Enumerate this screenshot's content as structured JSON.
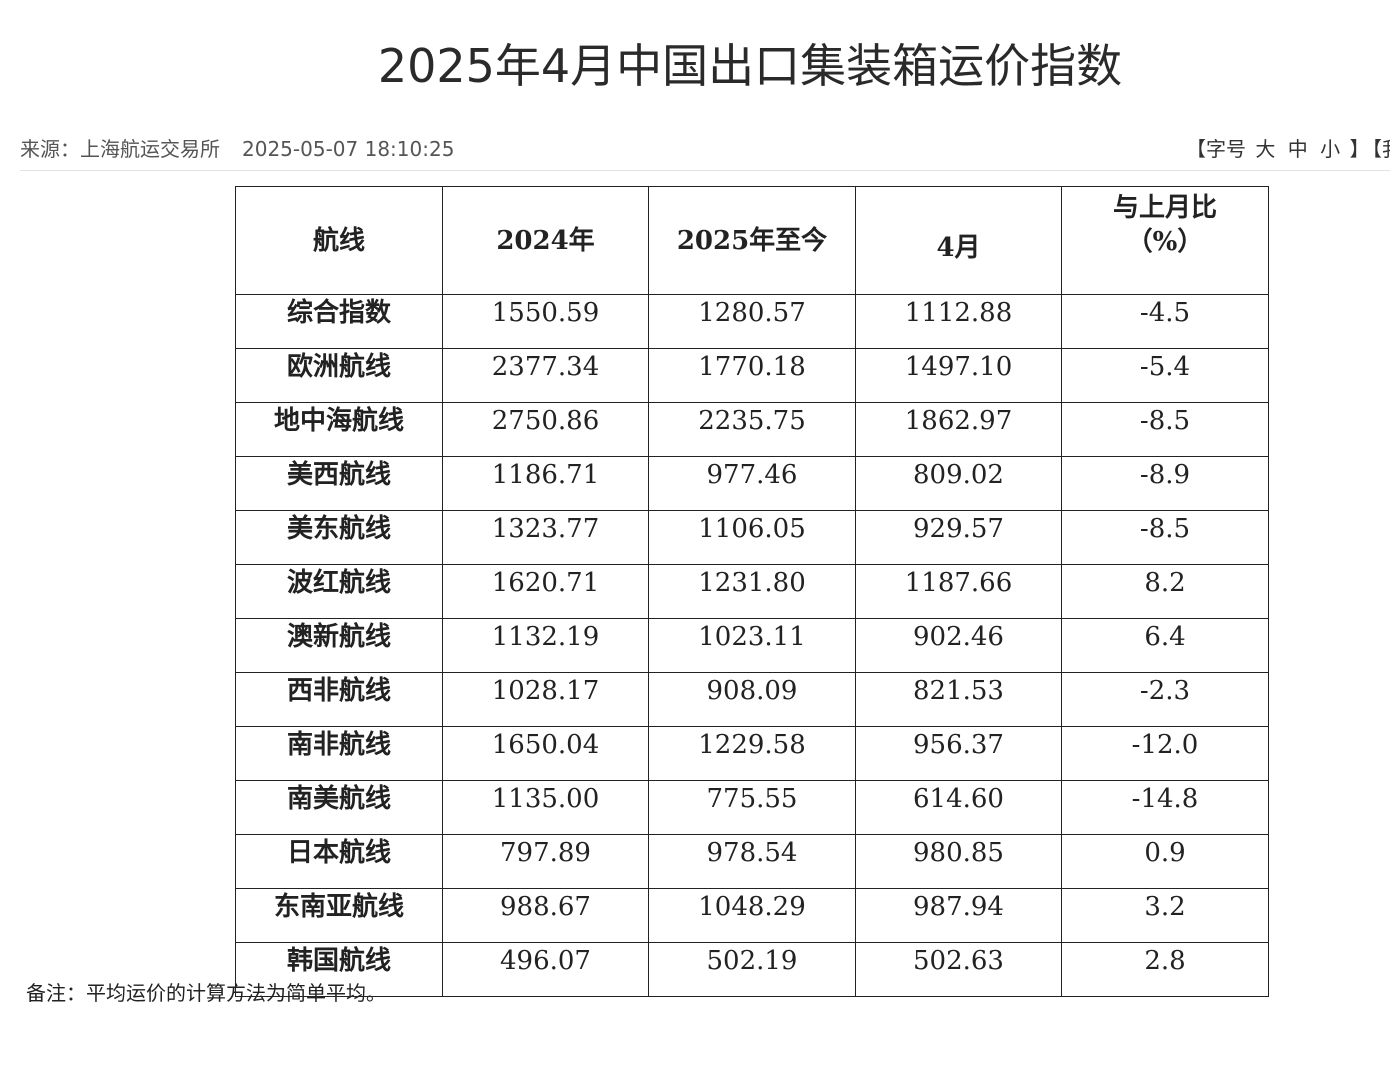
{
  "title": "2025年4月中国出口集装箱运价指数",
  "meta": {
    "source": "来源：上海航运交易所",
    "datetime": "2025-05-07 18:10:25",
    "font_size_open": "【字号",
    "font_size_large": "大",
    "font_size_medium": "中",
    "font_size_small": "小",
    "font_size_close": "】",
    "extra_control": "【我"
  },
  "table": {
    "headers": {
      "route": "航线",
      "y2024": "2024年",
      "ytd2025": "2025年至今",
      "april": "4月",
      "mom_line1": "与上月比",
      "mom_line2": "（%）"
    },
    "rows": [
      {
        "route": "综合指数",
        "y2024": "1550.59",
        "ytd2025": "1280.57",
        "april": "1112.88",
        "mom": "-4.5"
      },
      {
        "route": "欧洲航线",
        "y2024": "2377.34",
        "ytd2025": "1770.18",
        "april": "1497.10",
        "mom": "-5.4"
      },
      {
        "route": "地中海航线",
        "y2024": "2750.86",
        "ytd2025": "2235.75",
        "april": "1862.97",
        "mom": "-8.5"
      },
      {
        "route": "美西航线",
        "y2024": "1186.71",
        "ytd2025": "977.46",
        "april": "809.02",
        "mom": "-8.9"
      },
      {
        "route": "美东航线",
        "y2024": "1323.77",
        "ytd2025": "1106.05",
        "april": "929.57",
        "mom": "-8.5"
      },
      {
        "route": "波红航线",
        "y2024": "1620.71",
        "ytd2025": "1231.80",
        "april": "1187.66",
        "mom": "8.2"
      },
      {
        "route": "澳新航线",
        "y2024": "1132.19",
        "ytd2025": "1023.11",
        "april": "902.46",
        "mom": "6.4"
      },
      {
        "route": "西非航线",
        "y2024": "1028.17",
        "ytd2025": "908.09",
        "april": "821.53",
        "mom": "-2.3"
      },
      {
        "route": "南非航线",
        "y2024": "1650.04",
        "ytd2025": "1229.58",
        "april": "956.37",
        "mom": "-12.0"
      },
      {
        "route": "南美航线",
        "y2024": "1135.00",
        "ytd2025": "775.55",
        "april": "614.60",
        "mom": "-14.8"
      },
      {
        "route": "日本航线",
        "y2024": "797.89",
        "ytd2025": "978.54",
        "april": "980.85",
        "mom": "0.9"
      },
      {
        "route": "东南亚航线",
        "y2024": "988.67",
        "ytd2025": "1048.29",
        "april": "987.94",
        "mom": "3.2"
      },
      {
        "route": "韩国航线",
        "y2024": "496.07",
        "ytd2025": "502.19",
        "april": "502.63",
        "mom": "2.8"
      }
    ]
  },
  "footnote": "备注：平均运价的计算方法为简单平均。"
}
